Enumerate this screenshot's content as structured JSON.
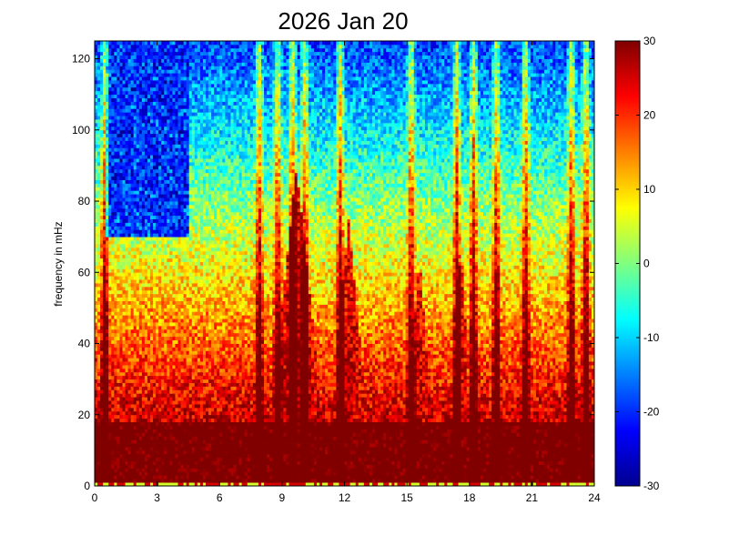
{
  "chart_data": {
    "type": "heatmap",
    "title": "2026 Jan 20",
    "xlabel": "",
    "ylabel": "frequency in mHz",
    "xlim": [
      0,
      24
    ],
    "ylim": [
      0,
      125
    ],
    "x_ticks": [
      "0",
      "3",
      "6",
      "9",
      "12",
      "15",
      "18",
      "21",
      "24"
    ],
    "y_ticks": [
      "0",
      "20",
      "40",
      "60",
      "80",
      "100",
      "120"
    ],
    "colorbar": {
      "min": -30,
      "max": 30,
      "colormap": "jet",
      "ticks": [
        "-30",
        "-20",
        "-10",
        "0",
        "10",
        "20",
        "30"
      ]
    },
    "grid": {
      "time_bins": 180,
      "freq_bins": 125
    },
    "features": {
      "low_freq_base_level": 30,
      "bright_vertical_streaks_hours": [
        0.5,
        7.9,
        8.8,
        9.5,
        10.1,
        11.8,
        15.2,
        17.4,
        18.2,
        19.3,
        20.7,
        22.9,
        23.6
      ],
      "broadband_hours": [
        {
          "center": 9.7,
          "width": 1.6,
          "height_mhz": 90
        },
        {
          "center": 12.2,
          "width": 1.2,
          "height_mhz": 75
        },
        {
          "center": 15.6,
          "width": 0.8,
          "height_mhz": 65
        },
        {
          "center": 17.6,
          "width": 0.6,
          "height_mhz": 70
        }
      ],
      "quiet_high_freq_hours": [
        0.5,
        4.5
      ],
      "quiet_high_freq_level": -20
    }
  }
}
